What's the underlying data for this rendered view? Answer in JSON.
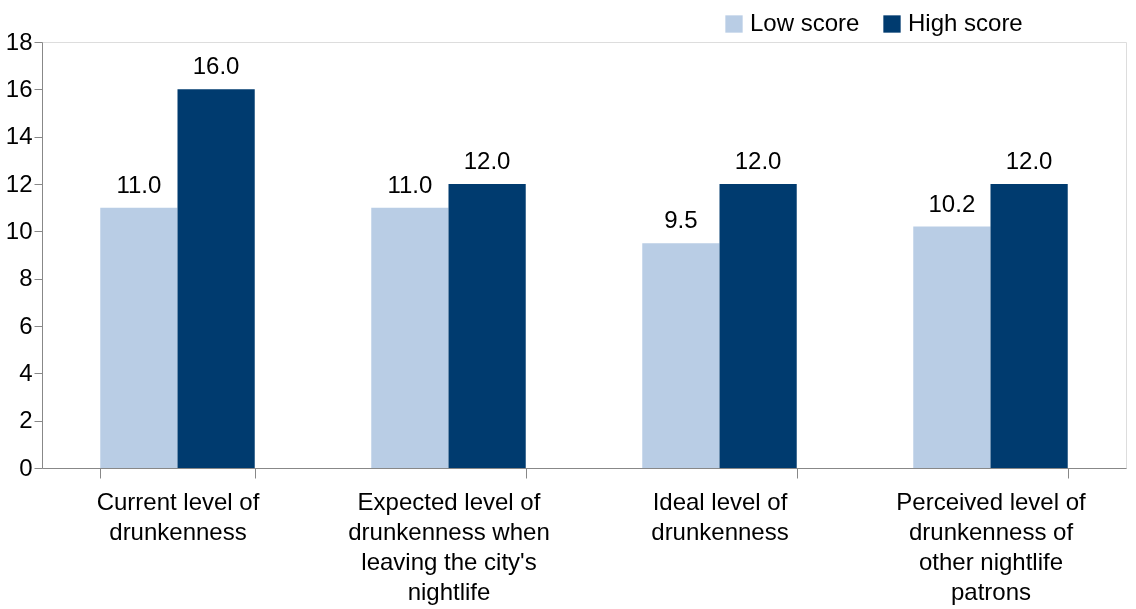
{
  "chart_data": {
    "type": "bar",
    "categories": [
      "Current level of drunkenness",
      "Expected level of drunkenness when leaving the city's nightlife",
      "Ideal level of drunkenness",
      "Perceived level of drunkenness of other nightlife patrons"
    ],
    "series": [
      {
        "name": "Low score",
        "color": "#b9cde5",
        "values": [
          11.0,
          11.0,
          9.5,
          10.2
        ],
        "value_labels": [
          "11.0",
          "11.0",
          "9.5",
          "10.2"
        ]
      },
      {
        "name": "High score",
        "color": "#003b6f",
        "values": [
          16.0,
          12.0,
          12.0,
          12.0
        ],
        "value_labels": [
          "16.0",
          "12.0",
          "12.0",
          "12.0"
        ]
      }
    ],
    "ylim": [
      0,
      18
    ],
    "yticks": [
      0,
      2,
      4,
      6,
      8,
      10,
      12,
      14,
      16,
      18
    ],
    "grid": false,
    "legend": "top right"
  }
}
